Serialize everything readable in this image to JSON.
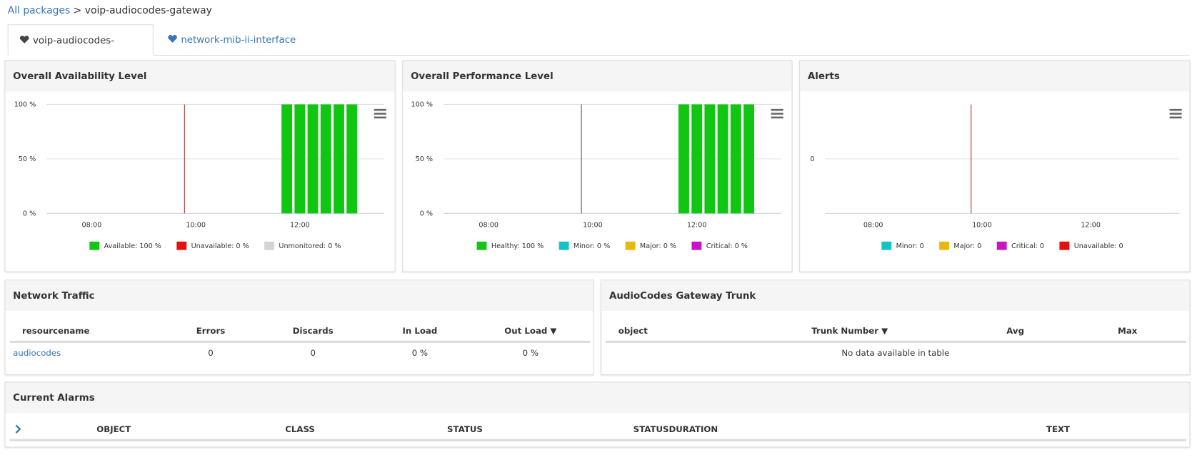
{
  "breadcrumb": {
    "link": "All packages",
    "current": "> voip-audiocodes-gateway"
  },
  "tabs": [
    "voip-audiocodes-gateway",
    "network-mib-ii-interface"
  ],
  "chart_data": [
    {
      "type": "bar",
      "title": "Overall Availability Level",
      "x": [
        "11:45",
        "12:00",
        "12:15",
        "12:30",
        "12:45",
        "13:00"
      ],
      "xlim": [
        "07:08",
        "13:37"
      ],
      "xticks": [
        "08:00",
        "10:00",
        "12:00"
      ],
      "ylim": [
        0,
        100
      ],
      "yticks": [
        {
          "value": 0,
          "label": "0 %"
        },
        {
          "value": 50,
          "label": "50 %"
        },
        {
          "value": 100,
          "label": "100 %"
        }
      ],
      "grid": true,
      "plot_line": {
        "x": "09:47",
        "color": "#a83232"
      },
      "series": [
        {
          "name": "Available: 100 %",
          "color": "#11c611",
          "values": [
            100,
            100,
            100,
            100,
            100,
            100
          ]
        },
        {
          "name": "Unavailable: 0 %",
          "color": "#e8100f",
          "values": [
            null,
            null,
            null,
            null,
            null,
            null
          ]
        },
        {
          "name": "Unmonitored: 0 %",
          "color": "#d5d3d1",
          "values": [
            null,
            null,
            null,
            null,
            null,
            null
          ]
        }
      ]
    },
    {
      "type": "bar",
      "title": "Overall Performance Level",
      "x": [
        "11:45",
        "12:00",
        "12:15",
        "12:30",
        "12:45",
        "13:00"
      ],
      "xlim": [
        "07:08",
        "13:37"
      ],
      "xticks": [
        "08:00",
        "10:00",
        "12:00"
      ],
      "ylim": [
        0,
        100
      ],
      "yticks": [
        {
          "value": 0,
          "label": "0 %"
        },
        {
          "value": 50,
          "label": "50 %"
        },
        {
          "value": 100,
          "label": "100 %"
        }
      ],
      "grid": true,
      "plot_line": {
        "x": "09:47",
        "color": "#a83232"
      },
      "series": [
        {
          "name": "Healthy: 100 %",
          "color": "#11c611",
          "values": [
            100,
            100,
            100,
            100,
            100,
            100
          ]
        },
        {
          "name": "Minor: 0 %",
          "color": "#14c4c4",
          "values": [
            null,
            null,
            null,
            null,
            null,
            null
          ]
        },
        {
          "name": "Major: 0 %",
          "color": "#e8b80c",
          "values": [
            null,
            null,
            null,
            null,
            null,
            null
          ]
        },
        {
          "name": "Critical: 0 %",
          "color": "#c814c8",
          "values": [
            null,
            null,
            null,
            null,
            null,
            null
          ]
        }
      ]
    },
    {
      "type": "bar",
      "title": "Alerts",
      "x": [],
      "xlim": [
        "07:07",
        "13:38"
      ],
      "xticks": [
        "08:00",
        "10:00",
        "12:00"
      ],
      "ylim": [
        -1,
        1
      ],
      "yticks": [
        0
      ],
      "grid": true,
      "plot_line": {
        "x": "09:48",
        "color": "#a83232"
      },
      "series": [
        {
          "name": "Minor: 0",
          "color": "#14c4c4",
          "values": []
        },
        {
          "name": "Major: 0",
          "color": "#e8b80c",
          "values": []
        },
        {
          "name": "Critical: 0",
          "color": "#c814c8",
          "values": []
        },
        {
          "name": "Unavailable: 0",
          "color": "#e8100f",
          "values": []
        }
      ]
    }
  ],
  "network_traffic": {
    "title": "Network Traffic",
    "headers": [
      "resourcename",
      "Errors",
      "Discards",
      "In Load",
      "Out Load ▼"
    ],
    "rows": [
      [
        "audiocodes",
        "0",
        "0",
        "0 %",
        "0 %"
      ]
    ]
  },
  "trunk": {
    "title": "AudioCodes Gateway Trunk",
    "headers": [
      "object",
      "Trunk Number ▼",
      "Avg",
      "Max"
    ],
    "empty": "No data available in table"
  },
  "alarms": {
    "title": "Current Alarms",
    "headers": [
      "OBJECT",
      "CLASS",
      "STATUS",
      "STATUSDURATION",
      "TEXT"
    ]
  }
}
